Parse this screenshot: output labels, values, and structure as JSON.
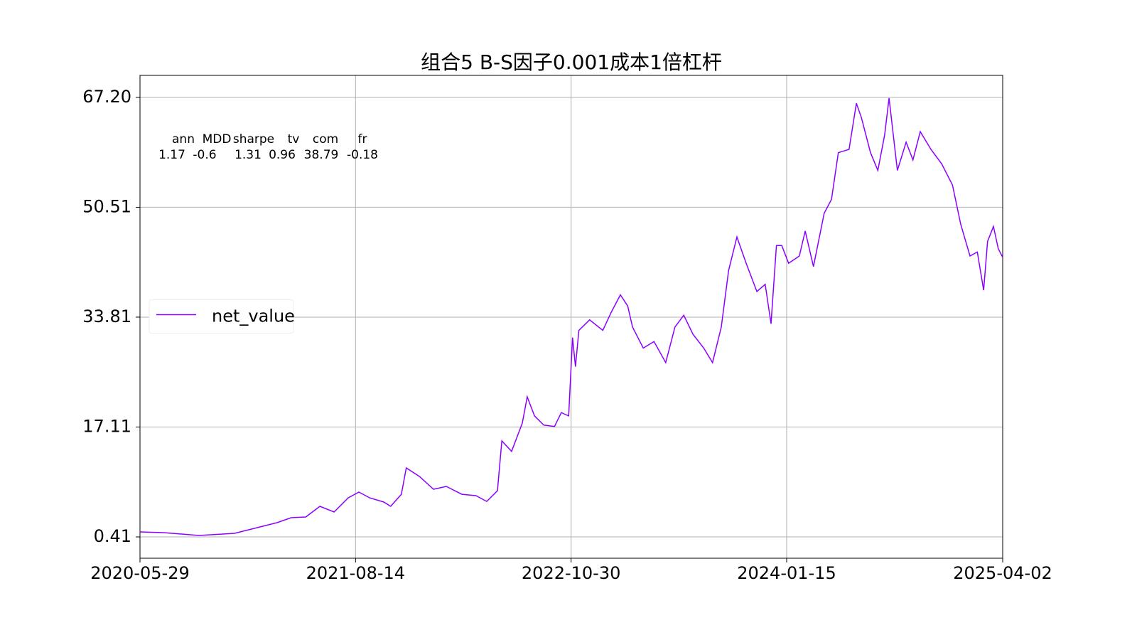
{
  "chart_data": {
    "type": "line",
    "title": "组合5 B-S因子0.001成本1倍杠杆",
    "x": [
      "2020-05-29",
      "2020-07-16",
      "2020-09-27",
      "2020-12-09",
      "2021-01-07",
      "2021-02-05",
      "2021-03-06",
      "2021-04-04",
      "2021-05-04",
      "2021-06-02",
      "2021-07-01",
      "2021-07-30",
      "2021-08-21",
      "2021-09-12",
      "2021-10-11",
      "2021-10-25",
      "2021-11-16",
      "2021-11-26",
      "2021-12-23",
      "2022-01-21",
      "2022-02-16",
      "2022-03-20",
      "2022-04-18",
      "2022-05-10",
      "2022-06-01",
      "2022-06-10",
      "2022-06-30",
      "2022-07-22",
      "2022-08-01",
      "2022-08-16",
      "2022-09-04",
      "2022-09-26",
      "2022-10-10",
      "2022-10-25",
      "2022-11-02",
      "2022-11-08",
      "2022-11-15",
      "2022-12-07",
      "2023-01-03",
      "2023-01-20",
      "2023-02-08",
      "2023-02-23",
      "2023-03-05",
      "2023-03-27",
      "2023-04-18",
      "2023-05-12",
      "2023-05-31",
      "2023-06-18",
      "2023-07-07",
      "2023-07-29",
      "2023-08-16",
      "2023-09-03",
      "2023-09-18",
      "2023-10-05",
      "2023-10-24",
      "2023-11-15",
      "2023-12-02",
      "2023-12-14",
      "2023-12-25",
      "2024-01-05",
      "2024-01-19",
      "2024-02-10",
      "2024-02-22",
      "2024-03-10",
      "2024-04-01",
      "2024-04-16",
      "2024-04-30",
      "2024-05-22",
      "2024-06-06",
      "2024-06-16",
      "2024-07-05",
      "2024-07-20",
      "2024-08-03",
      "2024-08-12",
      "2024-08-29",
      "2024-09-16",
      "2024-09-30",
      "2024-10-15",
      "2024-11-06",
      "2024-11-28",
      "2024-12-20",
      "2025-01-06",
      "2025-01-25",
      "2025-02-09",
      "2025-02-22",
      "2025-03-02",
      "2025-03-14",
      "2025-03-24",
      "2025-04-02"
    ],
    "series": [
      {
        "name": "net_value",
        "color": "#8b00ff",
        "values": [
          1.17,
          1.06,
          0.63,
          0.95,
          1.49,
          2.03,
          2.57,
          3.33,
          3.44,
          5.06,
          4.19,
          6.35,
          7.22,
          6.35,
          5.71,
          5.06,
          6.89,
          10.89,
          9.6,
          7.65,
          8.08,
          6.89,
          6.68,
          5.81,
          7.43,
          15.0,
          13.4,
          17.7,
          21.7,
          18.8,
          17.4,
          17.2,
          19.3,
          18.8,
          30.7,
          26.3,
          31.8,
          33.4,
          31.8,
          34.5,
          37.2,
          35.5,
          32.3,
          29.1,
          30.1,
          26.9,
          32.3,
          34.1,
          31.2,
          29.1,
          26.9,
          32.3,
          40.9,
          46.0,
          42.0,
          37.7,
          38.8,
          32.8,
          44.7,
          44.7,
          42.0,
          43.1,
          46.9,
          41.5,
          49.6,
          51.7,
          58.8,
          59.3,
          66.3,
          64.2,
          58.8,
          56.1,
          61.5,
          67.1,
          56.1,
          60.4,
          57.7,
          62.0,
          59.3,
          57.1,
          53.9,
          47.9,
          43.1,
          43.7,
          37.9,
          45.3,
          47.6,
          44.2,
          42.9
        ]
      }
    ],
    "xlim": [
      "2020-05-29",
      "2025-04-02"
    ],
    "xticks": [
      "2020-05-29",
      "2021-08-14",
      "2022-10-30",
      "2024-01-15",
      "2025-04-02"
    ],
    "ylim": [
      -2.83,
      70.55
    ],
    "yticks": [
      0.41,
      17.11,
      33.81,
      50.51,
      {
        "value": 67.2,
        "label": "67.20"
      }
    ],
    "grid": true,
    "legend": "center left",
    "stats": {
      "columns": [
        "ann",
        "MDD",
        "sharpe",
        "tv",
        "com",
        "fr"
      ],
      "values": [
        1.17,
        -0.6,
        1.31,
        0.96,
        38.79,
        -0.18
      ]
    }
  }
}
